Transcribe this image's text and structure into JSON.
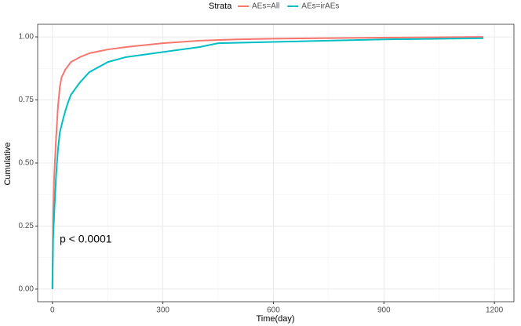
{
  "chart_data": {
    "type": "line",
    "legend_title": "Strata",
    "x_label": "Time(day)",
    "y_label": "Cumulative",
    "annotation": "p < 0.0001",
    "series": [
      {
        "name": "AEs=All",
        "color": "#F8766D",
        "x": [
          0,
          2,
          5,
          10,
          15,
          20,
          25,
          35,
          50,
          75,
          100,
          150,
          200,
          300,
          350,
          400,
          500,
          600,
          900,
          1170
        ],
        "values": [
          0,
          0.3,
          0.45,
          0.6,
          0.72,
          0.8,
          0.84,
          0.87,
          0.9,
          0.92,
          0.935,
          0.95,
          0.96,
          0.975,
          0.98,
          0.985,
          0.99,
          0.993,
          0.997,
          1.0
        ]
      },
      {
        "name": "AEs=irAEs",
        "color": "#00BFC4",
        "x": [
          0,
          2,
          5,
          10,
          15,
          20,
          30,
          40,
          50,
          75,
          100,
          150,
          200,
          300,
          400,
          450,
          600,
          900,
          1170
        ],
        "values": [
          0,
          0.2,
          0.3,
          0.45,
          0.55,
          0.62,
          0.68,
          0.73,
          0.77,
          0.82,
          0.86,
          0.9,
          0.92,
          0.94,
          0.96,
          0.975,
          0.98,
          0.99,
          0.995
        ]
      }
    ],
    "xlim": [
      -40,
      1253
    ],
    "ylim": [
      -0.05,
      1.05
    ],
    "xticks": [
      0,
      300,
      600,
      900,
      1200
    ],
    "yticks": [
      {
        "value": 0,
        "label": "0.00"
      },
      {
        "value": 0.25,
        "label": "0.25"
      },
      {
        "value": 0.5,
        "label": "0.50"
      },
      {
        "value": 0.75,
        "label": "0.75"
      },
      {
        "value": 1,
        "label": "1.00"
      }
    ],
    "grid": true,
    "legend_position": "top"
  }
}
